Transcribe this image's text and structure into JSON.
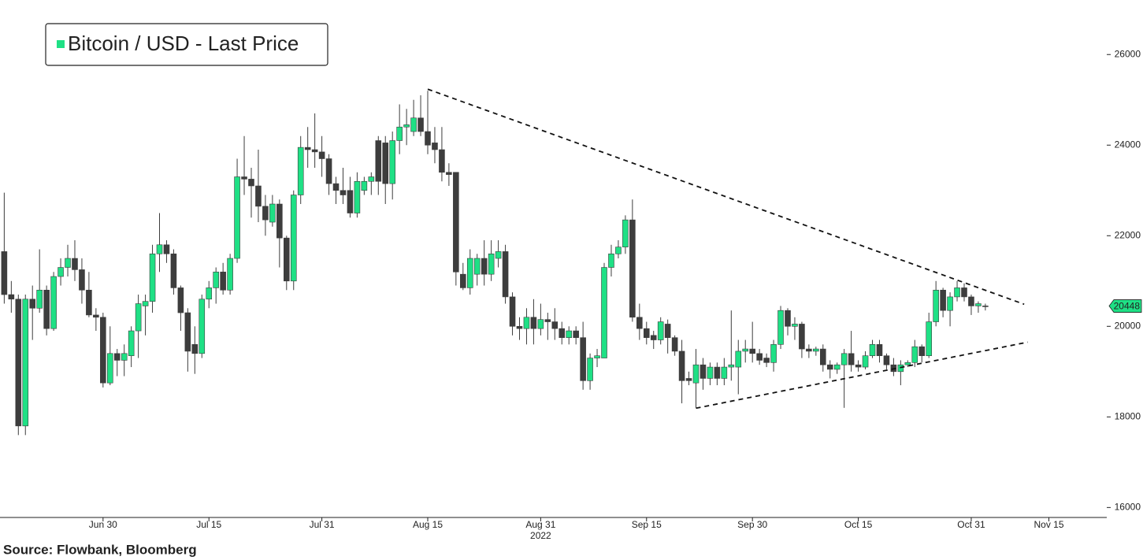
{
  "chart_data": {
    "type": "candlestick",
    "series": [
      {
        "name": "Bitcoin / USD - Last Price",
        "color": "#1fe085",
        "down_color": "#3d3d3d",
        "open": [
          21650,
          20700,
          20600,
          17800,
          20600,
          20400,
          20800,
          19950,
          21100,
          21300,
          21500,
          21250,
          20800,
          20250,
          20200,
          18750,
          19400,
          19250,
          19350,
          19900,
          20450,
          20550,
          21600,
          21800,
          21600,
          20850,
          20300,
          19600,
          19400,
          20600,
          20850,
          21200,
          20800,
          21500,
          23300,
          23250,
          23100,
          22650,
          22300,
          22700,
          21950,
          21000,
          22900,
          23950,
          23900,
          23850,
          23700,
          23150,
          23000,
          23000,
          22500,
          23000,
          23200,
          24100,
          24050,
          23150,
          24100,
          24400,
          24300,
          24600,
          24300,
          24050,
          23900,
          23400,
          23400,
          21150,
          20850,
          21150,
          21500,
          21150,
          21500,
          21650,
          20650,
          20000,
          19950,
          20200,
          19950,
          20150,
          20100,
          19950,
          19750,
          19900,
          19750,
          18800,
          19300,
          19300,
          21300,
          21600,
          21750,
          22350,
          20200,
          19950,
          19800,
          19700,
          20050,
          19750,
          19450,
          18850,
          18750,
          19150,
          18850,
          19100,
          18850,
          19100,
          19100,
          19450,
          19500,
          19400,
          19300,
          19200,
          19600,
          20350,
          20000,
          20050,
          19500,
          19450,
          19500,
          19150,
          19050,
          19150,
          19400,
          19150,
          19100,
          19350,
          19600,
          19350,
          19150,
          19000,
          19150,
          19200,
          19550,
          19350,
          20100,
          20800,
          20350,
          20650,
          20850,
          20650,
          20450,
          20450
        ],
        "high": [
          22950,
          21000,
          20700,
          20700,
          20900,
          21700,
          20900,
          21200,
          21500,
          21800,
          21900,
          21500,
          21200,
          20400,
          20300,
          20000,
          19500,
          19600,
          20000,
          20700,
          20700,
          21800,
          22500,
          21900,
          21700,
          20900,
          20400,
          20000,
          20700,
          21000,
          21300,
          21400,
          21600,
          23700,
          24200,
          23500,
          23900,
          22900,
          22900,
          22800,
          22000,
          23000,
          24200,
          24400,
          24700,
          24200,
          23800,
          23300,
          23500,
          23300,
          23400,
          23300,
          23400,
          24200,
          24200,
          24300,
          24900,
          24800,
          25000,
          25100,
          25200,
          24400,
          24400,
          23600,
          23400,
          21400,
          21700,
          21600,
          21900,
          21900,
          21900,
          21800,
          20750,
          20200,
          20400,
          20600,
          20500,
          20300,
          20400,
          20100,
          20000,
          20000,
          20100,
          19400,
          19500,
          21400,
          21800,
          21900,
          22450,
          22800,
          20500,
          20100,
          19900,
          20200,
          20150,
          19800,
          19700,
          19000,
          19500,
          19300,
          19200,
          19200,
          19300,
          20350,
          19700,
          19700,
          20100,
          19500,
          19400,
          19700,
          20450,
          20400,
          20200,
          20100,
          19600,
          19550,
          19600,
          19250,
          19200,
          19500,
          19900,
          19250,
          19450,
          19700,
          19700,
          19400,
          19300,
          19250,
          19250,
          19700,
          19600,
          20300,
          21000,
          20850,
          20750,
          21000,
          20950,
          20700,
          20550,
          20500
        ],
        "low": [
          20500,
          20300,
          17600,
          17600,
          19700,
          20300,
          19800,
          19900,
          20900,
          21100,
          21000,
          20500,
          20200,
          19900,
          18650,
          18700,
          18900,
          18900,
          19100,
          19300,
          19800,
          20300,
          21200,
          21400,
          20700,
          19900,
          19000,
          18950,
          19300,
          20400,
          20500,
          20700,
          20700,
          21400,
          22900,
          22400,
          22300,
          22000,
          22200,
          21300,
          20800,
          20800,
          22700,
          23500,
          23500,
          23300,
          22900,
          22700,
          22700,
          22400,
          22400,
          22900,
          22900,
          22900,
          22700,
          22800,
          23800,
          24000,
          24200,
          24200,
          23800,
          23600,
          23200,
          23100,
          20900,
          20800,
          20700,
          20900,
          20900,
          21000,
          21300,
          20500,
          19800,
          19700,
          19600,
          19600,
          19800,
          19700,
          19700,
          19600,
          19600,
          19600,
          18600,
          18600,
          19100,
          19300,
          21100,
          21500,
          21600,
          20100,
          19700,
          19600,
          19500,
          19600,
          19400,
          19350,
          18300,
          18700,
          18200,
          18600,
          18700,
          18700,
          18700,
          18800,
          18500,
          19200,
          19200,
          19150,
          19100,
          19000,
          19500,
          19800,
          19700,
          19300,
          19300,
          19350,
          19000,
          18850,
          18950,
          18200,
          19000,
          19000,
          19050,
          19300,
          19200,
          19050,
          18900,
          18700,
          19100,
          19100,
          19200,
          19300,
          20000,
          20200,
          20000,
          20550,
          20550,
          20250,
          20300,
          20350
        ],
        "close": [
          20700,
          20600,
          17800,
          20600,
          20400,
          20800,
          19950,
          21100,
          21300,
          21500,
          21250,
          20800,
          20250,
          20200,
          18750,
          19400,
          19250,
          19400,
          19900,
          20500,
          20550,
          21600,
          21800,
          21600,
          20850,
          20300,
          19450,
          19400,
          20600,
          20850,
          21200,
          20800,
          21500,
          23300,
          23250,
          23100,
          22650,
          22350,
          22700,
          21950,
          21000,
          22900,
          23950,
          23900,
          23850,
          23700,
          23150,
          23000,
          22900,
          22500,
          23200,
          23200,
          23300,
          23200,
          23150,
          24100,
          24400,
          24450,
          24600,
          24300,
          24000,
          23900,
          23400,
          23350,
          21200,
          20850,
          21500,
          21500,
          21150,
          21600,
          21650,
          20650,
          20000,
          19950,
          20200,
          19950,
          20150,
          20100,
          19950,
          19750,
          19900,
          19750,
          18800,
          19300,
          19350,
          21300,
          21600,
          21750,
          22350,
          20200,
          19950,
          19750,
          19700,
          20100,
          19750,
          19450,
          18800,
          18800,
          19150,
          18850,
          19100,
          18850,
          19100,
          19150,
          19450,
          19500,
          19400,
          19250,
          19200,
          19600,
          20350,
          20000,
          20050,
          19500,
          19450,
          19500,
          19150,
          19050,
          19150,
          19400,
          19150,
          19100,
          19350,
          19600,
          19350,
          19150,
          19000,
          19150,
          19200,
          19550,
          19350,
          20100,
          20800,
          20350,
          20650,
          20850,
          20650,
          20450,
          20500,
          20448
        ]
      }
    ],
    "last_price_label": 20448,
    "xlim": [
      -0.6,
      156.2
    ],
    "xticks": [
      {
        "value": 14,
        "label": "Jun 30"
      },
      {
        "value": 29,
        "label": "Jul 15"
      },
      {
        "value": 45,
        "label": "Jul 31"
      },
      {
        "value": 60,
        "label": "Aug 15"
      },
      {
        "value": 76,
        "label": "Aug 31"
      },
      {
        "value": 91,
        "label": "Sep 15"
      },
      {
        "value": 106,
        "label": "Sep 30"
      },
      {
        "value": 121,
        "label": "Oct 15"
      },
      {
        "value": 137,
        "label": "Oct 31"
      },
      {
        "value": 148,
        "label": "Nov 15"
      }
    ],
    "year_label": "2022",
    "ylim": [
      15780,
      27030
    ],
    "yticks": [
      16000,
      18000,
      20000,
      22000,
      24000,
      26000
    ],
    "trendlines": [
      {
        "x": [
          60,
          144.5
        ],
        "y": [
          25235,
          20487
        ]
      },
      {
        "x": [
          98,
          145
        ],
        "y": [
          18192,
          19650
        ]
      }
    ],
    "source": "Source: Flowbank, Bloomberg"
  }
}
